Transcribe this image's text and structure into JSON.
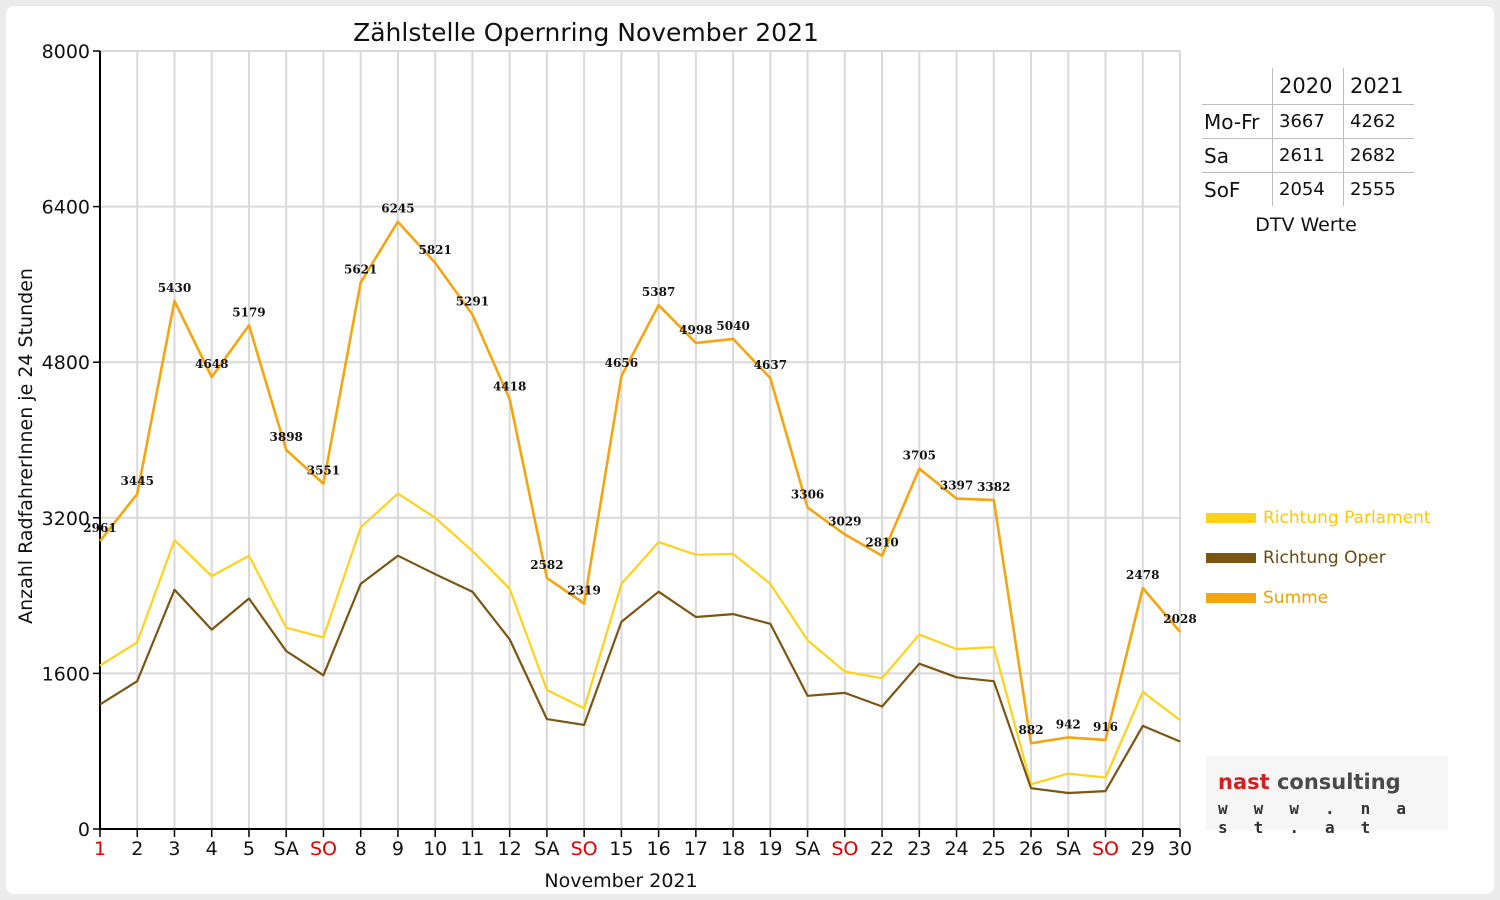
{
  "chart_data": {
    "type": "line",
    "title": "Zählstelle Opernring November 2021",
    "xlabel": "November 2021",
    "ylabel": "Anzahl RadfahrerInnen je 24 Stunden",
    "ylim": [
      0,
      8000
    ],
    "yticks": [
      0,
      1600,
      3200,
      4800,
      6400,
      8000
    ],
    "categories": [
      "1",
      "2",
      "3",
      "4",
      "5",
      "SA",
      "SO",
      "8",
      "9",
      "10",
      "11",
      "12",
      "SA",
      "SO",
      "15",
      "16",
      "17",
      "18",
      "19",
      "SA",
      "SO",
      "22",
      "23",
      "24",
      "25",
      "26",
      "SA",
      "SO",
      "29",
      "30"
    ],
    "highlight_categories": [
      0,
      6,
      13,
      20,
      27
    ],
    "grid": true,
    "legend_position": "right",
    "series": [
      {
        "name": "Richtung Parlament",
        "color": "#ffd21a",
        "values": [
          1680,
          1920,
          2970,
          2600,
          2810,
          2070,
          1970,
          3100,
          3450,
          3200,
          2860,
          2470,
          1430,
          1240,
          2520,
          2950,
          2820,
          2830,
          2520,
          1940,
          1620,
          1550,
          2000,
          1850,
          1870,
          460,
          570,
          530,
          1410,
          1120
        ]
      },
      {
        "name": "Richtung Oper",
        "color": "#7b5512",
        "values": [
          1280,
          1520,
          2460,
          2050,
          2370,
          1830,
          1580,
          2520,
          2810,
          2620,
          2440,
          1950,
          1130,
          1070,
          2130,
          2440,
          2180,
          2210,
          2110,
          1370,
          1400,
          1260,
          1700,
          1560,
          1520,
          420,
          370,
          390,
          1060,
          900
        ]
      },
      {
        "name": "Summe",
        "color": "#f4a510",
        "values": [
          2961,
          3445,
          5430,
          4648,
          5179,
          3898,
          3551,
          5621,
          6245,
          5821,
          5291,
          4418,
          2582,
          2319,
          4656,
          5387,
          4998,
          5040,
          4637,
          3306,
          3029,
          2810,
          3705,
          3397,
          3382,
          882,
          942,
          916,
          2478,
          2028
        ]
      }
    ],
    "data_labels_series": "Summe"
  },
  "dtv_table": {
    "columns": [
      "2020",
      "2021"
    ],
    "rows": [
      {
        "label": "Mo-Fr",
        "values": [
          "3667",
          "4262"
        ]
      },
      {
        "label": "Sa",
        "values": [
          "2611",
          "2682"
        ]
      },
      {
        "label": "SoF",
        "values": [
          "2054",
          "2555"
        ]
      }
    ],
    "caption": "DTV Werte"
  },
  "logo": {
    "name_part1": "nast",
    "name_part2": " consulting",
    "url": "w w w . n a s t . a t"
  },
  "colors": {
    "highlight": "#e00000",
    "grid": "#d9d9d9",
    "axis": "#000000"
  }
}
